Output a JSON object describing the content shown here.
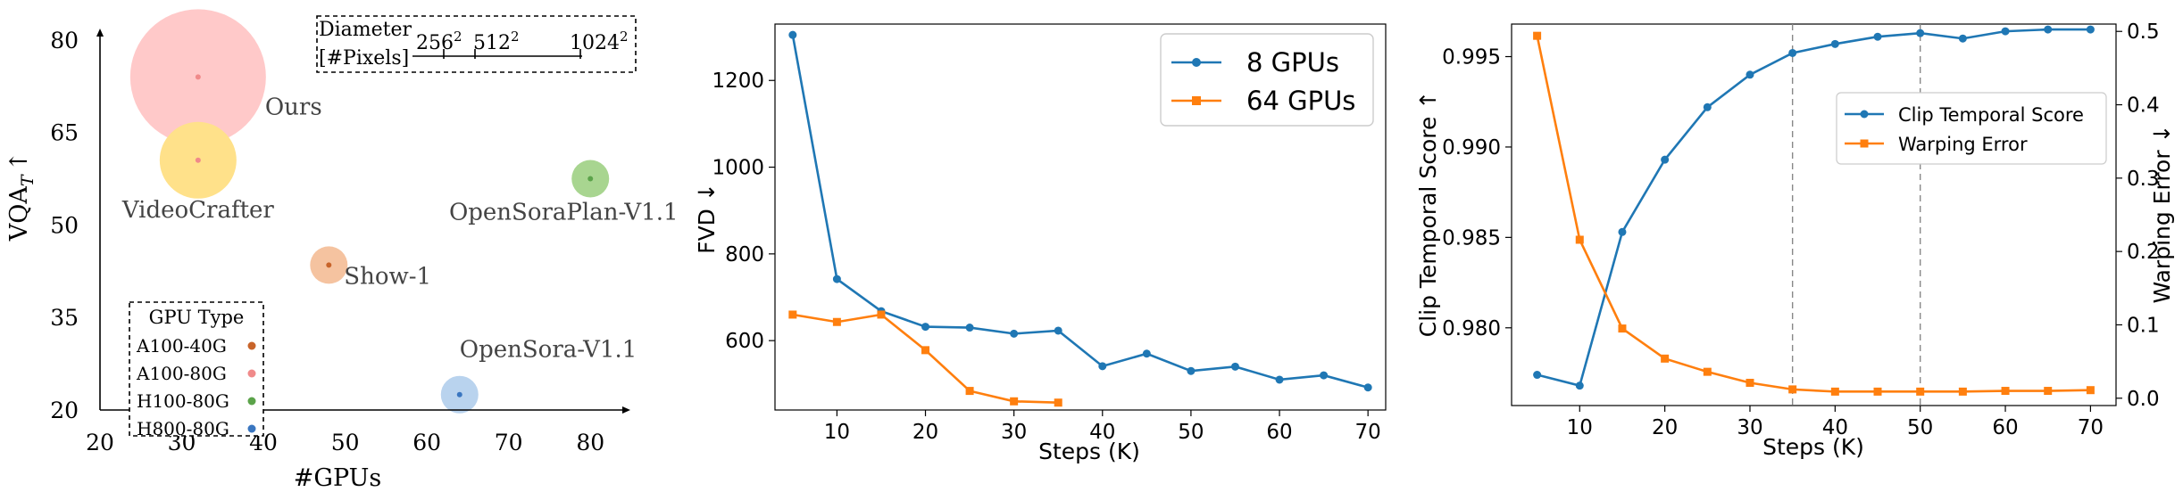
{
  "chart_data": [
    {
      "type": "scatter",
      "xlabel": "#GPUs",
      "ylabel": "VQA",
      "ylabel_subscript": "T",
      "ylabel_arrow": "↑",
      "xlim": [
        20,
        85
      ],
      "ylim": [
        20,
        82
      ],
      "xticks": [
        20,
        30,
        40,
        50,
        60,
        70,
        80
      ],
      "yticks": [
        20,
        35,
        50,
        65,
        80
      ],
      "grid": false,
      "size_legend": {
        "title_line1": "Diameter",
        "title_line2": "[#Pixels]",
        "ticks": [
          "256",
          "512",
          "1024"
        ],
        "exponent": "2"
      },
      "color_legend": {
        "title": "GPU Type",
        "items": [
          {
            "label": "A100-40G",
            "color": "#c8642a"
          },
          {
            "label": "A100-80G",
            "color": "#f08a8a"
          },
          {
            "label": "H100-80G",
            "color": "#5ba34a"
          },
          {
            "label": "H800-80G",
            "color": "#3a76c0"
          }
        ]
      },
      "points": [
        {
          "label": "Ours",
          "x": 32,
          "y": 74,
          "pixels": "1024",
          "fill": "#ffc9c9",
          "dot": "#f08a8a"
        },
        {
          "label": "VideoCrafter",
          "x": 32,
          "y": 60.5,
          "pixels": "512",
          "fill": "#ffe18a",
          "dot": "#f08a8a"
        },
        {
          "label": "OpenSoraPlan-V1.1",
          "x": 80,
          "y": 57.5,
          "pixels": "256",
          "fill": "#a8d590",
          "dot": "#5ba34a"
        },
        {
          "label": "Show-1",
          "x": 48,
          "y": 43.5,
          "pixels": "256",
          "fill": "#f5c3a0",
          "dot": "#c8642a"
        },
        {
          "label": "OpenSora-V1.1",
          "x": 64,
          "y": 22.5,
          "pixels": "256",
          "fill": "#b9d3ee",
          "dot": "#3a76c0"
        }
      ]
    },
    {
      "type": "line",
      "xlabel": "Steps (K)",
      "ylabel": "FVD ↓",
      "xlim": [
        3,
        72
      ],
      "ylim": [
        440,
        1330
      ],
      "xticks": [
        10,
        20,
        30,
        40,
        50,
        60,
        70
      ],
      "yticks": [
        600,
        800,
        1000,
        1200
      ],
      "grid": false,
      "legend_position": "top-right",
      "series": [
        {
          "name": "8 GPUs",
          "color": "#1f77b4",
          "marker": "circle",
          "x": [
            5,
            10,
            15,
            20,
            25,
            30,
            35,
            40,
            45,
            50,
            55,
            60,
            65,
            70
          ],
          "values": [
            1305,
            742,
            668,
            632,
            630,
            616,
            623,
            541,
            570,
            530,
            540,
            510,
            520,
            492
          ]
        },
        {
          "name": "64 GPUs",
          "color": "#ff7f0e",
          "marker": "square",
          "x": [
            5,
            10,
            15,
            20,
            25,
            30,
            35
          ],
          "values": [
            660,
            643,
            660,
            578,
            484,
            460,
            457
          ]
        }
      ]
    },
    {
      "type": "line",
      "xlabel": "Steps (K)",
      "ylabel": "Clip Temporal Score ↑",
      "ylabel_right": "Warping Error ↓",
      "xlim": [
        2,
        73
      ],
      "ylim": [
        0.9757,
        0.9968
      ],
      "ylim_right": [
        -0.01,
        0.51
      ],
      "xticks": [
        10,
        20,
        30,
        40,
        50,
        60,
        70
      ],
      "yticks": [
        "0.980",
        "0.985",
        "0.990",
        "0.995"
      ],
      "yticks_right": [
        "0.0",
        "0.1",
        "0.2",
        "0.3",
        "0.4",
        "0.5"
      ],
      "vlines": [
        35,
        50
      ],
      "grid": false,
      "legend_position": "center-right",
      "series": [
        {
          "name": "Clip Temporal Score",
          "color": "#1f77b4",
          "marker": "circle",
          "axis": "left",
          "x": [
            5,
            10,
            15,
            20,
            25,
            30,
            35,
            40,
            45,
            50,
            55,
            60,
            65,
            70
          ],
          "values": [
            0.9774,
            0.9768,
            0.9853,
            0.9893,
            0.9922,
            0.994,
            0.9952,
            0.9957,
            0.9961,
            0.9963,
            0.996,
            0.9964,
            0.9965,
            0.9965
          ]
        },
        {
          "name": "Warping Error",
          "color": "#ff7f0e",
          "marker": "square",
          "axis": "right",
          "x": [
            5,
            10,
            15,
            20,
            25,
            30,
            35,
            40,
            45,
            50,
            55,
            60,
            65,
            70
          ],
          "values": [
            0.494,
            0.216,
            0.095,
            0.054,
            0.036,
            0.021,
            0.012,
            0.009,
            0.009,
            0.009,
            0.009,
            0.01,
            0.01,
            0.011
          ]
        }
      ]
    }
  ]
}
